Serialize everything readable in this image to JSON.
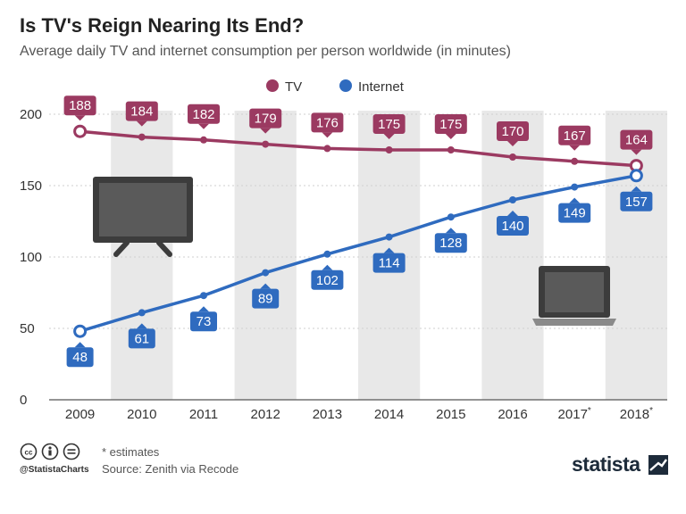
{
  "title": "Is TV's Reign Nearing Its End?",
  "subtitle": "Average daily TV and internet consumption per person worldwide (in minutes)",
  "footnote": "* estimates",
  "source": "Source: Zenith via Recode",
  "handle": "@StatistaCharts",
  "brand": "statista",
  "colors": {
    "tv": "#9b3a61",
    "internet": "#2f6bbf",
    "band": "#e8e8e8",
    "axis": "#555555"
  },
  "chart_data": {
    "type": "line",
    "title": "Is TV's Reign Nearing Its End?",
    "subtitle": "Average daily TV and internet consumption per person worldwide (in minutes)",
    "xlabel": "",
    "ylabel": "",
    "categories": [
      "2009",
      "2010",
      "2011",
      "2012",
      "2013",
      "2014",
      "2015",
      "2016",
      "2017",
      "2018"
    ],
    "category_marks": [
      "",
      "",
      "",
      "",
      "",
      "",
      "",
      "",
      "*",
      "*"
    ],
    "ylim": [
      0,
      200
    ],
    "yticks": [
      0,
      50,
      100,
      150,
      200
    ],
    "legend_position": "top-center",
    "series": [
      {
        "name": "TV",
        "color_key": "tv",
        "label_position": "above",
        "values": [
          188,
          184,
          182,
          179,
          176,
          175,
          175,
          170,
          167,
          164
        ]
      },
      {
        "name": "Internet",
        "color_key": "internet",
        "label_position": "below",
        "values": [
          48,
          61,
          73,
          89,
          102,
          114,
          128,
          140,
          149,
          157
        ]
      }
    ],
    "icons": [
      "tv-icon",
      "laptop-icon"
    ]
  }
}
